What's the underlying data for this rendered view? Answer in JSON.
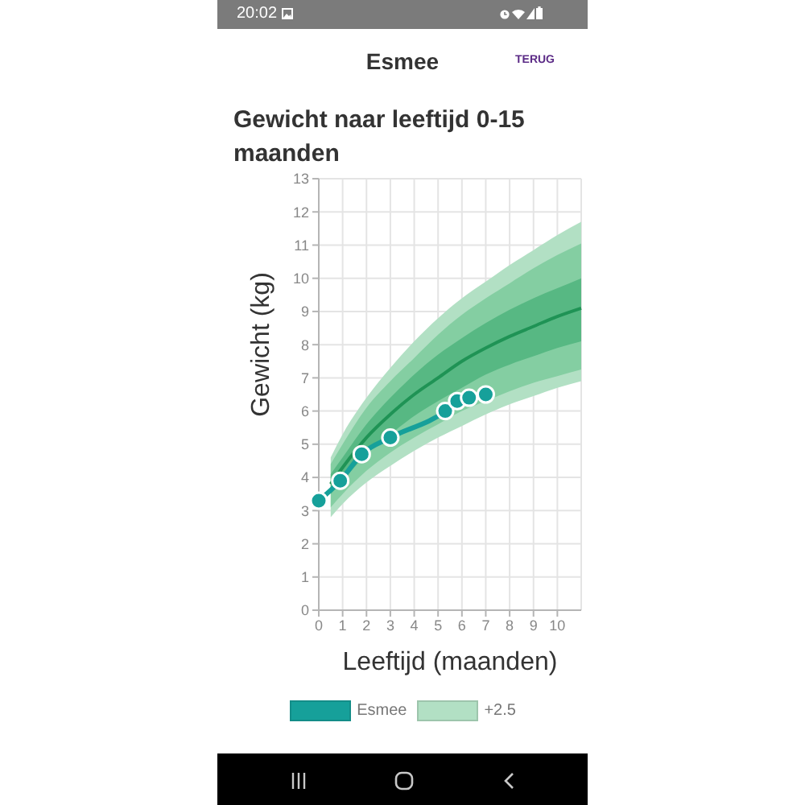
{
  "chart_data": {
    "type": "line",
    "title": "Gewicht naar leeftijd 0-15 maanden",
    "xlabel": "Leeftijd (maanden)",
    "ylabel": "Gewicht (kg)",
    "annotations": [
      "20:02",
      "Esmee",
      "TERUG"
    ],
    "xlim": [
      0,
      11
    ],
    "xticks": [
      0,
      1,
      2,
      3,
      4,
      5,
      6,
      7,
      8,
      9,
      10
    ],
    "ylim": [
      0,
      13
    ],
    "yticks": [
      0,
      1,
      2,
      3,
      4,
      5,
      6,
      7,
      8,
      9,
      10,
      11,
      12,
      13
    ],
    "grid": true,
    "legend": "bottom",
    "series": [
      {
        "name": "Esmee",
        "marker": "circle",
        "color": "#16a09a",
        "x": [
          0,
          0.9,
          1.8,
          3,
          5.3,
          5.8,
          6.3,
          7
        ],
        "values": [
          3.3,
          3.9,
          4.7,
          5.2,
          6.0,
          6.3,
          6.4,
          6.5
        ]
      },
      {
        "name": "+2.5",
        "color": "#b2e0c4",
        "x": [
          0.5,
          1,
          2,
          3,
          4,
          5,
          6,
          7,
          8,
          9,
          10,
          11
        ],
        "values": [
          null,
          null,
          null,
          null,
          null,
          null,
          null,
          null,
          null,
          null,
          null,
          null
        ],
        "upper": [
          4.6,
          5.3,
          6.4,
          7.3,
          8.1,
          8.8,
          9.4,
          9.9,
          10.4,
          10.85,
          11.3,
          11.7
        ],
        "lower": [
          2.8,
          3.2,
          3.85,
          4.35,
          4.8,
          5.2,
          5.55,
          5.9,
          6.2,
          6.45,
          6.7,
          6.9
        ]
      },
      {
        "color": "#84cea2",
        "x": [
          0.5,
          1,
          2,
          3,
          4,
          5,
          6,
          7,
          8,
          9,
          10,
          11
        ],
        "values": [
          null,
          null,
          null,
          null,
          null,
          null,
          null,
          null,
          null,
          null,
          null,
          null
        ],
        "upper": [
          4.4,
          5.0,
          6.1,
          6.9,
          7.6,
          8.3,
          8.9,
          9.4,
          9.85,
          10.3,
          10.7,
          11.05
        ],
        "lower": [
          3.1,
          3.5,
          4.2,
          4.75,
          5.2,
          5.6,
          6.0,
          6.3,
          6.6,
          6.85,
          7.05,
          7.25
        ]
      },
      {
        "color": "#57b883",
        "x": [
          0.5,
          1,
          2,
          3,
          4,
          5,
          6,
          7,
          8,
          9,
          10,
          11
        ],
        "values": [
          null,
          null,
          null,
          null,
          null,
          null,
          null,
          null,
          null,
          null,
          null,
          null
        ],
        "upper": [
          4.1,
          4.6,
          5.6,
          6.4,
          7.1,
          7.7,
          8.2,
          8.65,
          9.05,
          9.4,
          9.7,
          10.0
        ],
        "lower": [
          3.5,
          3.9,
          4.7,
          5.3,
          5.85,
          6.3,
          6.7,
          7.1,
          7.4,
          7.65,
          7.9,
          8.1
        ]
      },
      {
        "marker": "none",
        "color": "#1f9355",
        "x": [
          0.5,
          1,
          2,
          3,
          4,
          5,
          6,
          7,
          8,
          9,
          10,
          11
        ],
        "values": [
          3.8,
          4.3,
          5.2,
          5.9,
          6.5,
          7.0,
          7.5,
          7.9,
          8.25,
          8.55,
          8.85,
          9.1
        ]
      }
    ]
  }
}
